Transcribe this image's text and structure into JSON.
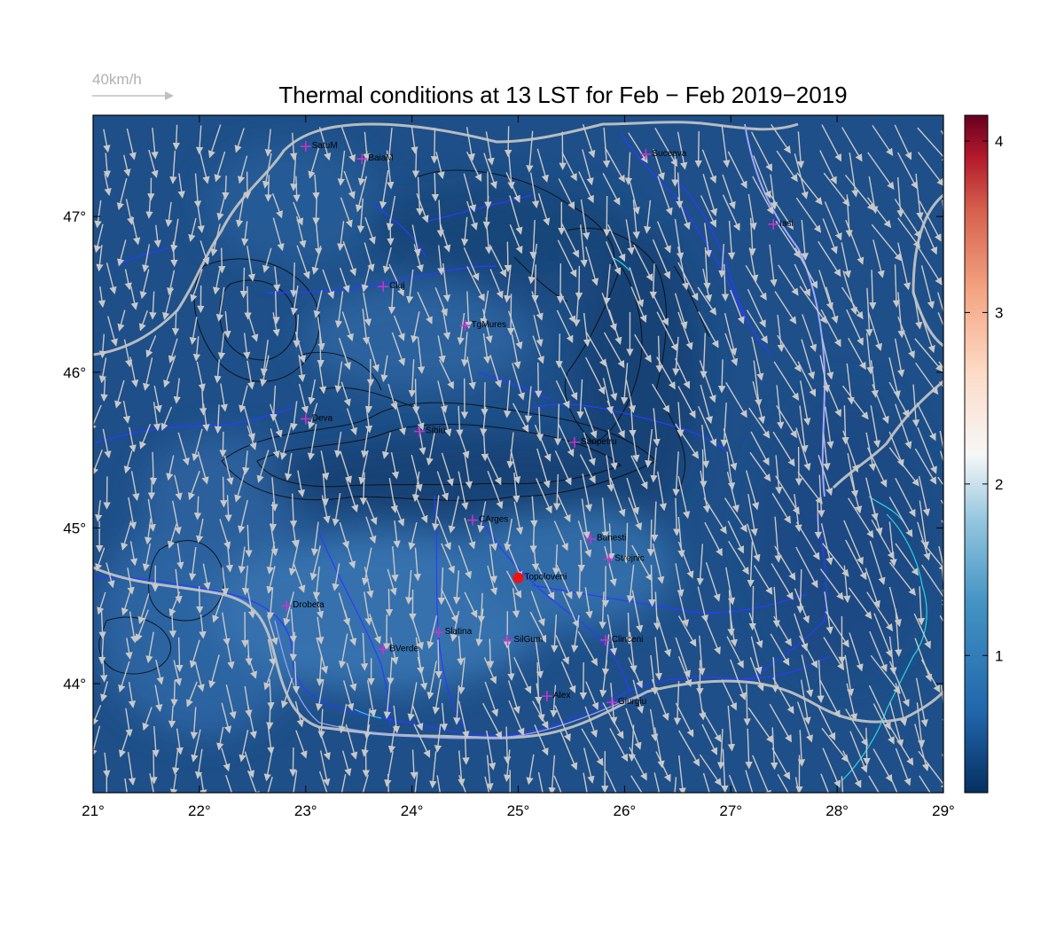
{
  "map": {
    "title": "Thermal conditions at 13 LST for Feb − Feb  2019−2019",
    "scale": {
      "label": "40km/h"
    },
    "lon_range": [
      21,
      29
    ],
    "lat_range": [
      43.3,
      47.65
    ],
    "x_ticks": [
      "21°",
      "22°",
      "23°",
      "24°",
      "25°",
      "26°",
      "27°",
      "28°",
      "29°"
    ],
    "y_ticks": [
      "44°",
      "45°",
      "46°",
      "47°"
    ],
    "colorbar": {
      "min": 0.2,
      "max": 4.15,
      "ticks": [
        "1",
        "2",
        "3",
        "4"
      ],
      "colormap": "RdBu_r"
    },
    "colors": {
      "background": "#1f4f87",
      "arrow": "#c8c8c8",
      "city_marker": "#cc33cc",
      "highlight": "#ee1111",
      "river": "#2a3cff",
      "border": "#c8c8c8"
    },
    "cities": [
      {
        "name": "SatuM",
        "lon": 23.0,
        "lat": 47.45
      },
      {
        "name": "BaiaM",
        "lon": 23.53,
        "lat": 47.37
      },
      {
        "name": "Suceava",
        "lon": 26.2,
        "lat": 47.4
      },
      {
        "name": "Iasi",
        "lon": 27.4,
        "lat": 46.95
      },
      {
        "name": "Cluj",
        "lon": 23.73,
        "lat": 46.55
      },
      {
        "name": "TgMures",
        "lon": 24.5,
        "lat": 46.3
      },
      {
        "name": "Deva",
        "lon": 23.0,
        "lat": 45.7
      },
      {
        "name": "Sibiu",
        "lon": 24.07,
        "lat": 45.62
      },
      {
        "name": "Sanpetru",
        "lon": 25.53,
        "lat": 45.55
      },
      {
        "name": "CArges",
        "lon": 24.57,
        "lat": 45.05
      },
      {
        "name": "Banesti",
        "lon": 25.68,
        "lat": 44.93
      },
      {
        "name": "Strejnic",
        "lon": 25.85,
        "lat": 44.8
      },
      {
        "name": "Topoloveni",
        "lon": 25.0,
        "lat": 44.68,
        "highlight": true
      },
      {
        "name": "Drobeta",
        "lon": 22.82,
        "lat": 44.5
      },
      {
        "name": "Slatina",
        "lon": 24.25,
        "lat": 44.33
      },
      {
        "name": "SilGum",
        "lon": 24.9,
        "lat": 44.28
      },
      {
        "name": "Clinceni",
        "lon": 25.82,
        "lat": 44.28
      },
      {
        "name": "BVerde",
        "lon": 23.73,
        "lat": 44.22
      },
      {
        "name": "Alex",
        "lon": 25.27,
        "lat": 43.92
      },
      {
        "name": "Giurgiu",
        "lon": 25.88,
        "lat": 43.88
      }
    ]
  }
}
